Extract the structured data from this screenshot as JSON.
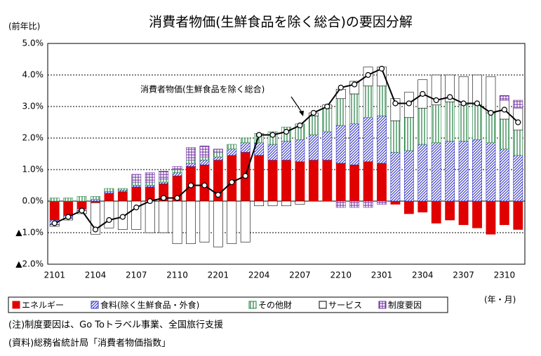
{
  "chart_data": {
    "type": "stacked_bar_line",
    "title": "消費者物価(生鮮食品を除く総合)の要因分解",
    "y_axis_label": "(前年比)",
    "x_axis_label": "(年・月)",
    "notes": [
      "(注)制度要因は、Go Toトラベル事業、全国旅行支援",
      "(資料)総務省統計局「消費者物価指数」"
    ],
    "categories": [
      "2101",
      null,
      null,
      "2104",
      null,
      null,
      "2107",
      null,
      null,
      "2110",
      null,
      null,
      "2201",
      null,
      null,
      "2204",
      null,
      null,
      "2207",
      null,
      null,
      "2210",
      null,
      null,
      "2301",
      null,
      null,
      "2304",
      null,
      null,
      "2307",
      null,
      null,
      "2310",
      null
    ],
    "ylim": [
      -2.0,
      5.0
    ],
    "yticks": [
      {
        "value": -2.0,
        "label": "▲2.0%"
      },
      {
        "value": -1.0,
        "label": "▲1.0%"
      },
      {
        "value": 0.0,
        "label": "0.0%"
      },
      {
        "value": 1.0,
        "label": "1.0%"
      },
      {
        "value": 2.0,
        "label": "2.0%"
      },
      {
        "value": 3.0,
        "label": "3.0%"
      },
      {
        "value": 4.0,
        "label": "4.0%"
      },
      {
        "value": 5.0,
        "label": "5.0%"
      }
    ],
    "grid": true,
    "series": [
      {
        "name": "エネルギー",
        "color": "#e00000",
        "pattern": "solid",
        "values": [
          -0.6,
          -0.45,
          -0.25,
          -0.05,
          0.25,
          0.3,
          0.45,
          0.45,
          0.55,
          0.8,
          1.1,
          1.15,
          1.3,
          1.45,
          1.55,
          1.45,
          1.3,
          1.3,
          1.25,
          1.3,
          1.3,
          1.2,
          1.15,
          1.25,
          1.2,
          -0.1,
          -0.4,
          -0.35,
          -0.7,
          -0.6,
          -0.75,
          -0.85,
          -1.05,
          -0.75,
          -0.9
        ]
      },
      {
        "name": "食料(除く生鮮食品・外食)",
        "color": "#3030c0",
        "pattern": "diagonal",
        "values": [
          -0.15,
          -0.1,
          -0.05,
          0.05,
          0.05,
          0.05,
          0.05,
          0.05,
          0.05,
          0.1,
          0.1,
          0.15,
          0.1,
          0.2,
          0.3,
          0.4,
          0.5,
          0.6,
          0.7,
          0.8,
          0.9,
          1.2,
          1.3,
          1.4,
          1.5,
          1.55,
          1.6,
          1.8,
          1.85,
          1.9,
          1.9,
          1.95,
          1.85,
          1.65,
          1.45
        ]
      },
      {
        "name": "その他財",
        "color": "#208040",
        "pattern": "vertical",
        "values": [
          0.1,
          0.1,
          0.15,
          0.1,
          0.1,
          0.05,
          0.1,
          0.1,
          0.1,
          0.1,
          0.1,
          0.1,
          0.15,
          0.15,
          0.15,
          0.3,
          0.4,
          0.45,
          0.5,
          0.6,
          0.75,
          0.85,
          0.95,
          1.0,
          0.95,
          1.0,
          1.05,
          1.15,
          1.2,
          1.25,
          1.15,
          1.1,
          0.95,
          0.95,
          0.8
        ]
      },
      {
        "name": "サービス",
        "color": "#ffffff",
        "pattern": "none",
        "values": [
          -0.05,
          -0.05,
          -0.1,
          -1.0,
          -0.85,
          -0.9,
          -0.9,
          -1.0,
          -1.0,
          -1.35,
          -1.35,
          -1.3,
          -1.45,
          -1.35,
          -1.3,
          -0.15,
          -0.15,
          -0.15,
          -0.1,
          0.1,
          0.1,
          0.3,
          0.4,
          0.6,
          0.6,
          0.7,
          0.8,
          0.9,
          0.95,
          0.85,
          0.9,
          0.95,
          1.15,
          0.6,
          0.7
        ]
      },
      {
        "name": "制度要因",
        "color": "#7030a0",
        "pattern": "grid",
        "values": [
          0,
          0,
          0,
          0,
          0,
          0,
          0.25,
          0.3,
          0.25,
          0.1,
          0.4,
          0.35,
          0.1,
          0,
          0,
          0,
          0,
          0,
          0,
          0,
          0,
          -0.2,
          -0.2,
          -0.2,
          -0.1,
          0,
          0,
          0,
          0,
          0,
          0,
          0,
          0,
          0.15,
          0.25
        ]
      }
    ],
    "line": {
      "name": "消費者物価(生鮮食品を除く総合)",
      "color": "#000000",
      "values": [
        -0.7,
        -0.5,
        -0.3,
        -0.9,
        -0.6,
        -0.5,
        -0.2,
        0.0,
        0.1,
        0.1,
        0.5,
        0.5,
        0.2,
        0.6,
        0.8,
        2.1,
        2.1,
        2.2,
        2.4,
        2.8,
        3.0,
        3.6,
        3.7,
        4.0,
        4.2,
        3.1,
        3.1,
        3.4,
        3.2,
        3.3,
        3.1,
        3.1,
        2.8,
        2.9,
        2.5
      ]
    }
  }
}
